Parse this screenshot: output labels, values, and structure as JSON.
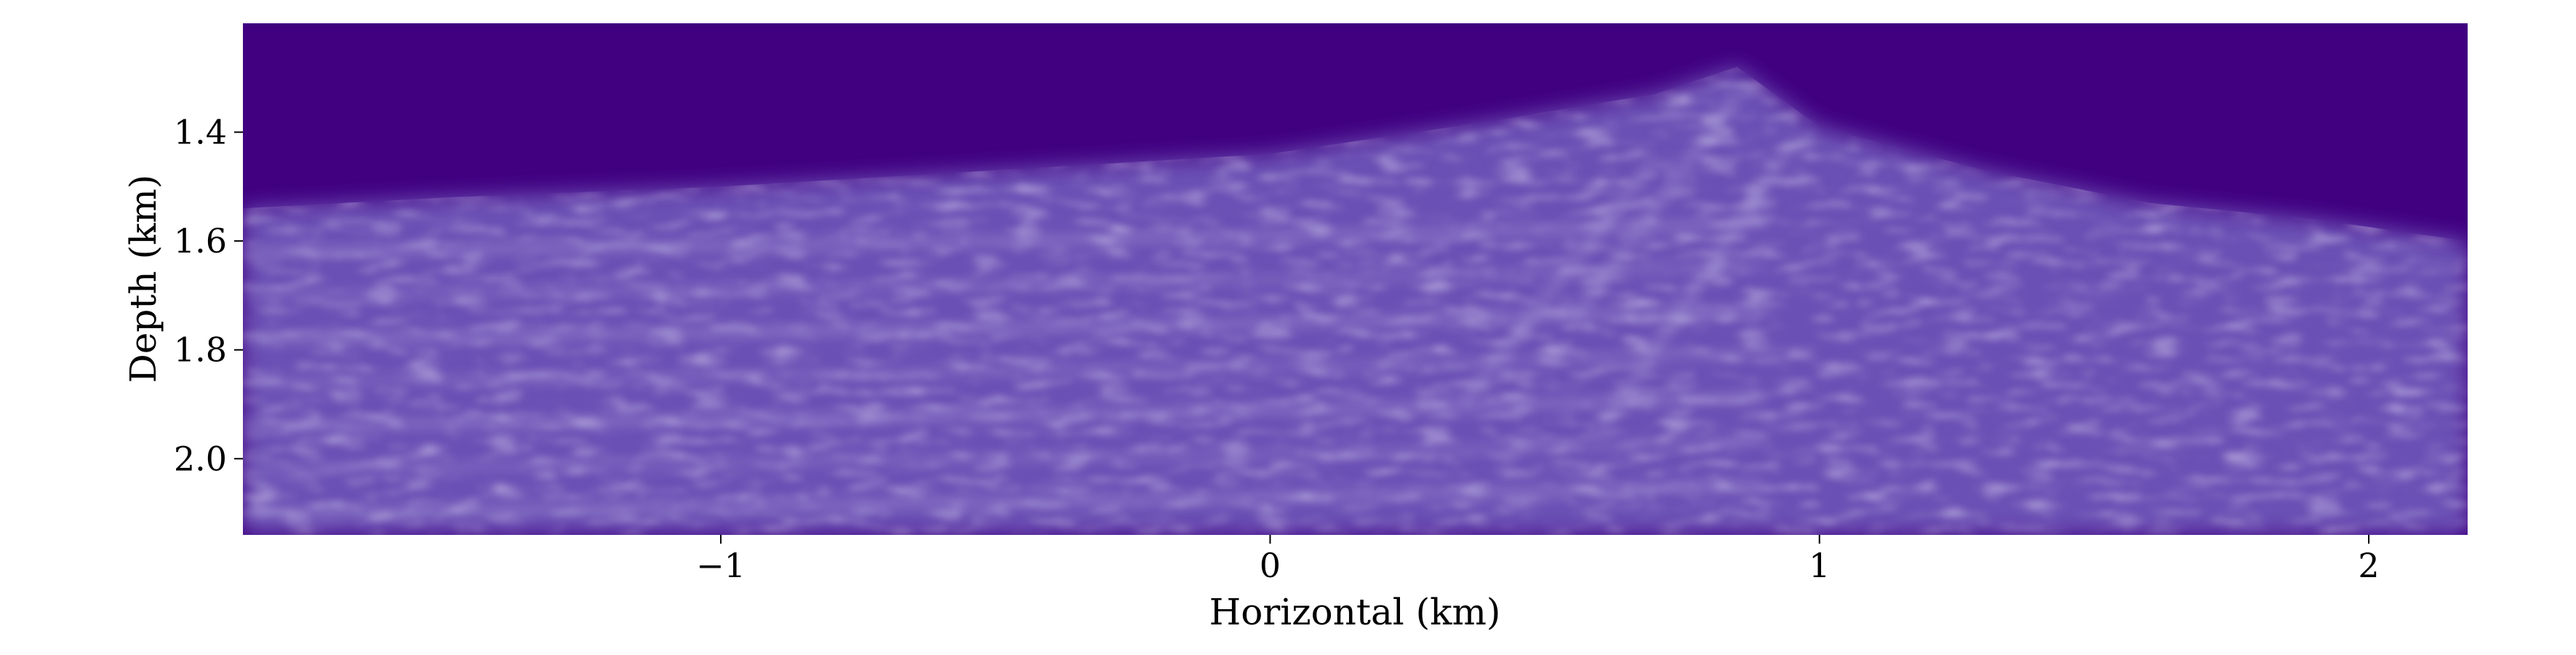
{
  "chart_data": {
    "type": "heatmap",
    "title": "",
    "xlabel": "Horizontal (km)",
    "ylabel": "Depth (km)",
    "xlim": [
      -1.87,
      2.18
    ],
    "ylim": [
      2.14,
      1.2
    ],
    "y_inverted": true,
    "x_ticks": [
      {
        "value": -1,
        "label": "−1"
      },
      {
        "value": 0,
        "label": "0"
      },
      {
        "value": 1,
        "label": "1"
      },
      {
        "value": 2,
        "label": "2"
      }
    ],
    "y_ticks": [
      {
        "value": 1.4,
        "label": "1.4"
      },
      {
        "value": 1.6,
        "label": "1.6"
      },
      {
        "value": 1.8,
        "label": "1.8"
      },
      {
        "value": 2.0,
        "label": "2.0"
      }
    ],
    "grid": false,
    "legend": "none",
    "colormap": "purples",
    "colors": {
      "background": "#400080",
      "mid": "#6a4fb4",
      "highlight": "#b8aee0",
      "axis": "#000000"
    },
    "water_bottom_depth_profile": {
      "x": [
        -1.87,
        -1.5,
        -1.0,
        -0.5,
        0.0,
        0.4,
        0.7,
        0.85,
        1.0,
        1.3,
        1.6,
        1.9,
        2.18
      ],
      "depth": [
        1.54,
        1.52,
        1.5,
        1.47,
        1.44,
        1.38,
        1.33,
        1.28,
        1.39,
        1.47,
        1.53,
        1.56,
        1.6
      ]
    },
    "reflector_depths": [
      1.62,
      1.7,
      1.78,
      1.86,
      1.94,
      2.02,
      2.1
    ]
  }
}
